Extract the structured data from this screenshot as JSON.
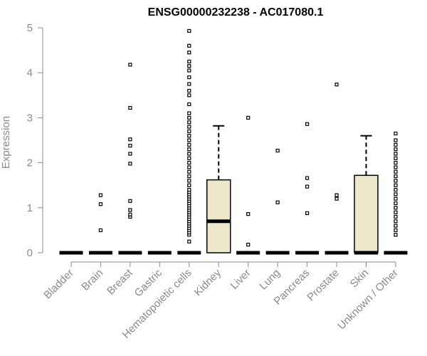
{
  "chart_data": {
    "type": "boxplot",
    "title": "ENSG00000232238 - AC017080.1",
    "xlabel": "",
    "ylabel": "Expression",
    "ylim": [
      0,
      5
    ],
    "yticks": [
      0,
      1,
      2,
      3,
      4,
      5
    ],
    "grid": false,
    "box_color": "#ede7cc",
    "categories": [
      "Bladder",
      "Brain",
      "Breast",
      "Gastric",
      "Hematopoietic cells",
      "Kidney",
      "Liver",
      "Lung",
      "Pancreas",
      "Prostate",
      "Skin",
      "Unknown / Other"
    ],
    "boxes": [
      {
        "q1": 0,
        "median": 0,
        "q3": 0,
        "whisker_low": 0,
        "whisker_high": 0,
        "outliers": []
      },
      {
        "q1": 0,
        "median": 0,
        "q3": 0,
        "whisker_low": 0,
        "whisker_high": 0,
        "outliers": [
          0.5,
          1.08,
          1.28
        ]
      },
      {
        "q1": 0,
        "median": 0,
        "q3": 0,
        "whisker_low": 0,
        "whisker_high": 0,
        "outliers": [
          0.8,
          0.85,
          0.95,
          1.15,
          1.98,
          2.2,
          2.38,
          2.52,
          3.22,
          4.18
        ]
      },
      {
        "q1": 0,
        "median": 0,
        "q3": 0,
        "whisker_low": 0,
        "whisker_high": 0,
        "outliers": []
      },
      {
        "q1": 0,
        "median": 0,
        "q3": 0,
        "whisker_low": 0,
        "whisker_high": 0,
        "outliers": [
          0.25,
          0.4,
          0.45,
          0.5,
          0.55,
          0.6,
          0.65,
          0.7,
          0.75,
          0.8,
          0.85,
          0.9,
          0.95,
          1.0,
          1.05,
          1.1,
          1.15,
          1.2,
          1.25,
          1.3,
          1.35,
          1.4,
          1.5,
          1.6,
          1.7,
          1.8,
          1.9,
          2.0,
          2.1,
          2.2,
          2.3,
          2.4,
          2.5,
          2.6,
          2.7,
          2.8,
          2.9,
          3.0,
          3.1,
          3.3,
          3.5,
          3.6,
          3.75,
          3.9,
          4.05,
          4.15,
          4.25,
          4.45,
          4.6,
          4.93
        ]
      },
      {
        "q1": 0,
        "median": 0.7,
        "q3": 1.62,
        "whisker_low": 0,
        "whisker_high": 2.82,
        "outliers": []
      },
      {
        "q1": 0,
        "median": 0,
        "q3": 0,
        "whisker_low": 0,
        "whisker_high": 0,
        "outliers": [
          0.18,
          0.86,
          3.0
        ]
      },
      {
        "q1": 0,
        "median": 0,
        "q3": 0,
        "whisker_low": 0,
        "whisker_high": 0,
        "outliers": [
          1.12,
          2.27
        ]
      },
      {
        "q1": 0,
        "median": 0,
        "q3": 0,
        "whisker_low": 0,
        "whisker_high": 0,
        "outliers": [
          0.88,
          1.47,
          1.66,
          2.86
        ]
      },
      {
        "q1": 0,
        "median": 0,
        "q3": 0,
        "whisker_low": 0,
        "whisker_high": 0,
        "outliers": [
          1.2,
          1.28,
          3.74
        ]
      },
      {
        "q1": 0,
        "median": 0,
        "q3": 1.72,
        "whisker_low": 0,
        "whisker_high": 2.6,
        "outliers": []
      },
      {
        "q1": 0,
        "median": 0,
        "q3": 0,
        "whisker_low": 0,
        "whisker_high": 0,
        "outliers": [
          0.4,
          0.5,
          0.6,
          0.7,
          0.8,
          0.9,
          1.0,
          1.1,
          1.2,
          1.3,
          1.4,
          1.5,
          1.6,
          1.7,
          1.8,
          1.9,
          2.0,
          2.1,
          2.2,
          2.3,
          2.4,
          2.5,
          2.65
        ]
      }
    ]
  }
}
